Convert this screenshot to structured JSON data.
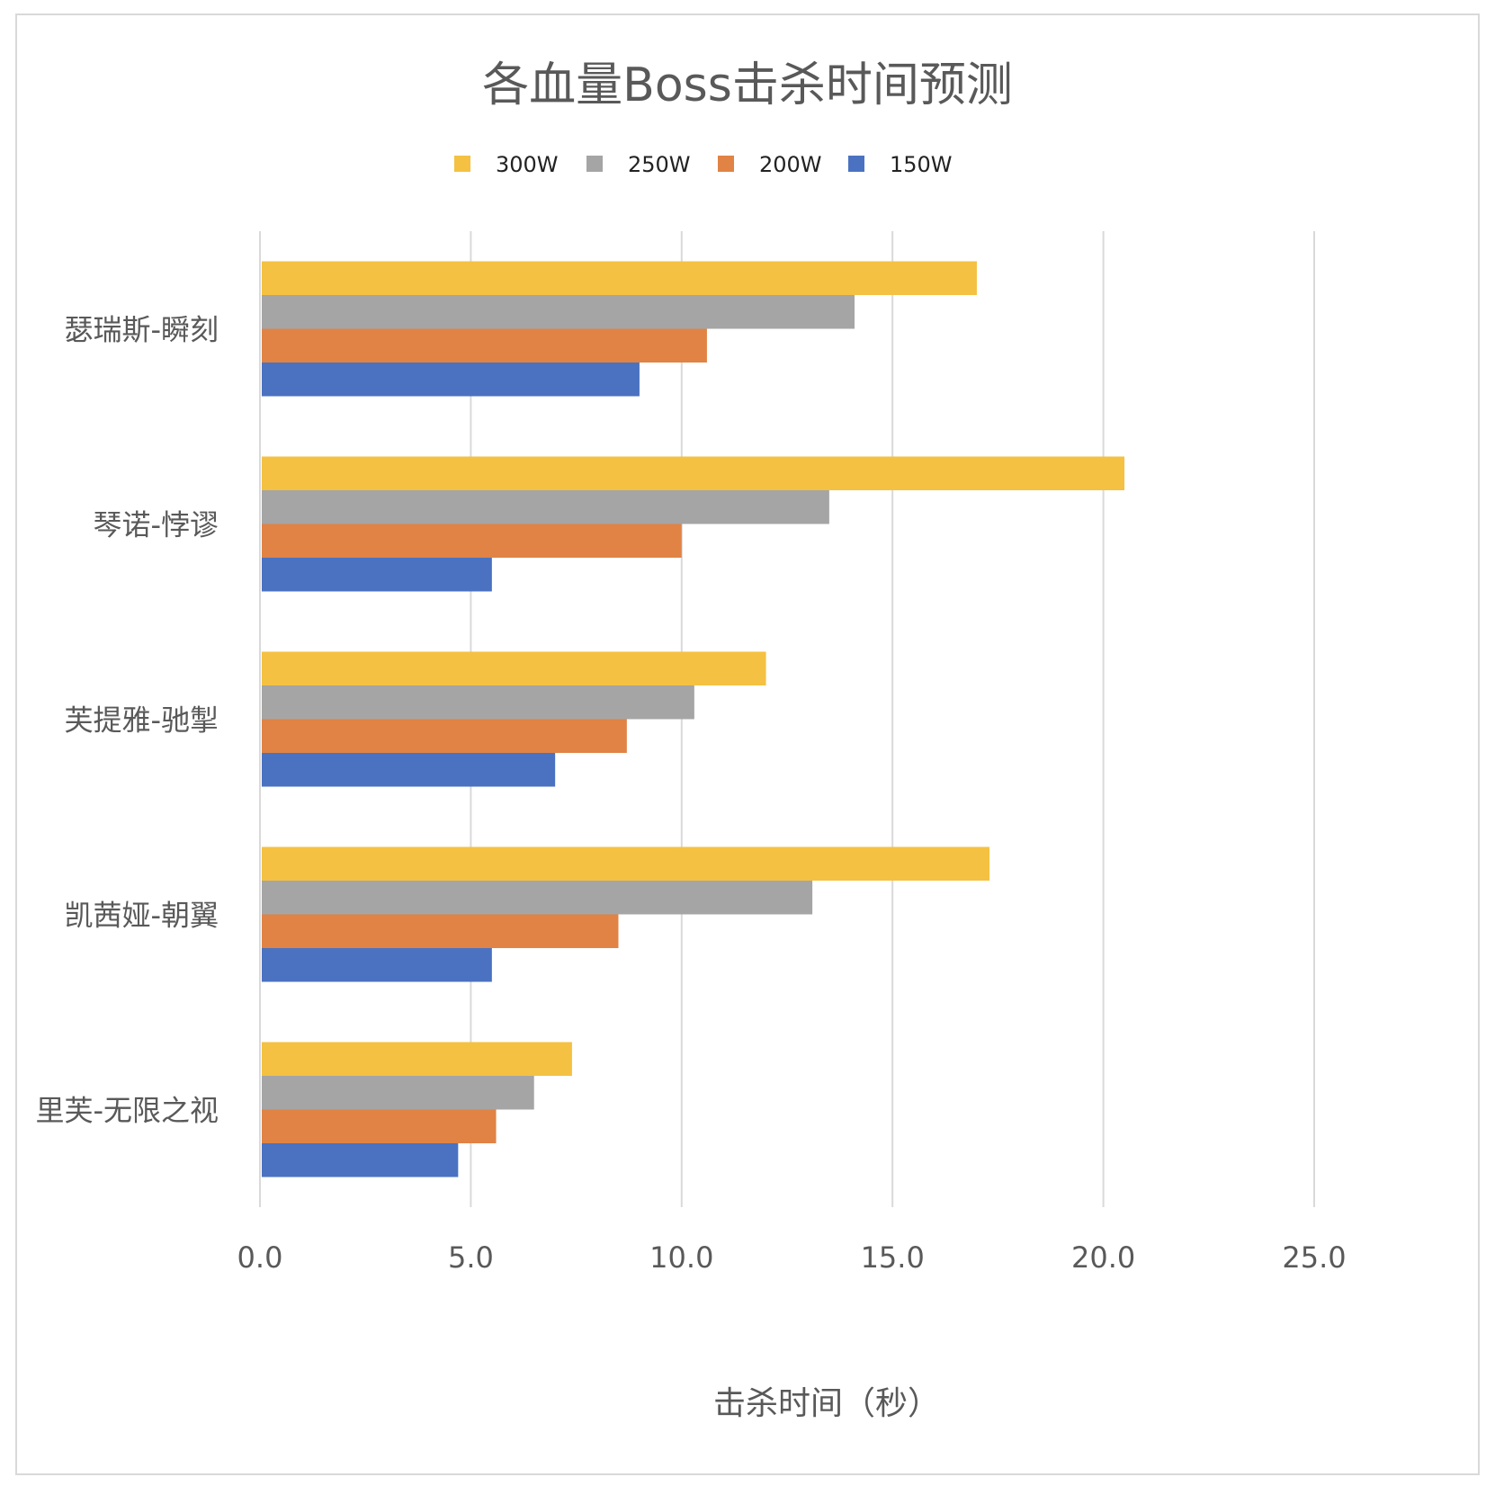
{
  "chart_data": {
    "type": "bar",
    "orientation": "horizontal",
    "title": "各血量Boss击杀时间预测",
    "xlabel": "击杀时间（秒）",
    "ylabel": "",
    "xlim": [
      0,
      25
    ],
    "xticks": [
      "0.0",
      "5.0",
      "10.0",
      "15.0",
      "20.0",
      "25.0"
    ],
    "grid": true,
    "legend_position": "top",
    "categories": [
      "瑟瑞斯-瞬刻",
      "琴诺-悖谬",
      "芙提雅-驰掣",
      "凯茜娅-朝翼",
      "里芙-无限之视"
    ],
    "series": [
      {
        "name": "300W",
        "color": "#f4c142",
        "values": [
          17.0,
          20.5,
          12.0,
          17.3,
          7.4
        ]
      },
      {
        "name": "250W",
        "color": "#a5a5a5",
        "values": [
          14.1,
          13.5,
          10.3,
          13.1,
          6.5
        ]
      },
      {
        "name": "200W",
        "color": "#e08345",
        "values": [
          10.6,
          10.0,
          8.7,
          8.5,
          5.6
        ]
      },
      {
        "name": "150W",
        "color": "#4a72c1",
        "values": [
          9.0,
          5.5,
          7.0,
          5.5,
          4.7
        ]
      }
    ]
  }
}
